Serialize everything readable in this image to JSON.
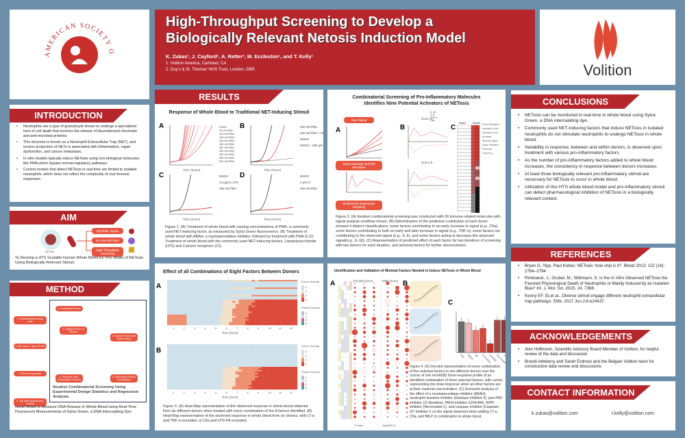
{
  "header": {
    "title_line1": "High-Throughput Screening to Develop a",
    "title_line2": "Biologically Relevant Netosis Induction Model",
    "authors": "K. Zukas¹, J. Cayford¹, A. Retter², M. Eccleston¹, and T. Kelly¹",
    "affiliation1": "1. Volition America, Carlsbad, CA",
    "affiliation2": "2. Guy's & St. Thomas' NHS Trust, London, GBR"
  },
  "logos": {
    "ash": "AMERICAN SOCIETY OF HEMATOLOGY",
    "volition": "Volition"
  },
  "colors": {
    "brand_red": "#b5262d",
    "background": "#6d8ea8",
    "accent_orange": "#e8553f"
  },
  "introduction": {
    "title": "INTRODUCTION",
    "bullets": [
      "Neutrophils are a type of granulocyte known to undergo a specialized form of cell death that involves the release of decondensed chromatin and anti-microbial proteins.",
      "This structure is known as a Neutrophil Extracellular Trap (NET), and excess production of NETs is associated with inflammation, organ dysfunction, and cancer metastasis.",
      "In vitro models typically induce NETosis using non-biological molecules like PMA which bypass normal regulatory pathways",
      "Current models that detect NETosis in real-time are limited to isolated neutrophils, which does not reflect the complexity of real immune responses."
    ]
  },
  "aim": {
    "title": "AIM",
    "net_label": "NETosis",
    "net_sublabel": "Neutrophil Extracellular Traps",
    "pills": [
      "Synthetic Inputs",
      "Ex-Vivo NETosis",
      "High Throughput Screening"
    ],
    "text": "To Develop a HTS Scalable Human Whole Blood Ex-Vivo Model of NETosis Using Biologically Relevant Stimuli."
  },
  "method": {
    "title": "METHOD",
    "steps_left": [
      "1. Dilute/dispense blood cells",
      "2. Mix blood + Sytox Green",
      "3. Pin and spin plate",
      "4. Top read fluorescence reading"
    ],
    "cycle_steps": [
      "1. Individual Factors",
      "2. Design Pools of Factors",
      "3. Screen Pools with Sytox Assay",
      "4. Determine Factor Contribution",
      "5. Remove Zero Contribution Factors"
    ],
    "axis_label": "Time Elapsed (hr)",
    "box_caption": "Iterative Combinatorial Screening Using Experimental Design Statistics and Regression Analysis.",
    "caption": "Novel Model to Measure DNA Release in Whole Blood using Real-Time Fluorescent Measurements of Sytox Green, a DNA Intercalating Dye."
  },
  "results": {
    "title": "RESULTS",
    "fig1_title": "Response of Whole Blood to Traditional NET-Inducing Stimuli",
    "panels": [
      "A",
      "B",
      "C",
      "D"
    ],
    "x_label": "Time (hours)",
    "y_label": "RFU (1e6)",
    "legend_a": [
      "DMSO",
      "50 nM PMA",
      "100 nM PMA",
      "150 nM PMA",
      "200 nM PMA",
      "250 nM PMA",
      "300 nM PMA",
      "350 nM PMA",
      "400 nM PMA",
      "450 nM PMA",
      "500 nM PMA"
    ],
    "legend_b": [
      "250 nM PMA",
      "250 nM PMA + 500 µM ABAH",
      "DMSO",
      "DMSO + 500 µM ABAH"
    ],
    "legend_c": [
      "DMSO",
      "12 µg/mL LPS",
      "250 nM PMA"
    ],
    "legend_d": [
      "DMSO",
      "4 µM CI",
      "250 nM PMA"
    ],
    "caption": "Figure 1. (A) Treatment of whole blood with varying concentrations of PMA, a commonly used NET-inducing factor, as measured by Sytox Green fluorescence. (B) Treatment of whole blood with ABAH, a myeloperoxidase inhibitor, followed by treatment with PMA (C,D) Treatment of whole blood with the commonly used NET-inducing factors, Lipopolysaccharide (LPS) and Calcium Ionophore (CI)."
  },
  "fig2": {
    "title_line1": "Combinatorial Screening of Pro-Inflammatory Molecules",
    "title_line2": "Identifies Nine Potential Activators of NETosis",
    "pills": [
      "Raw Signal",
      "Signal average and first derivative",
      "Multivariate Regression Modeling"
    ],
    "donor_a": "Donor A",
    "donor_b": "Donor B",
    "legend": [
      "IL-1β",
      "IL-5",
      "TNF-α",
      "C5a"
    ],
    "table_header": [
      "#",
      "Factor",
      "Screen"
    ],
    "legend_c": [
      "Donor Response",
      "Increase in both",
      "Increase in one",
      "No effect",
      "Reduced signal",
      "Factor Selection",
      "Removed",
      "Final Pool"
    ],
    "caption": "Figure 2. (A) Iterative combinatorial screening was conducted with 26 immune related molecules with signal analysis workflow shown. (B) Determination of the predicted contribution of each factor showed 4 distinct classifications; some factors contributing to an early increase in signal (e.g., C5a), some factors contributing to both an early and later increase in signal (e.g., TNF-α), some factors not contributing to the observed signal (e.g., IL-5), and some factors acting to decrease the observed signal(e.g., IL-1β). (C) Representation of predicted effect of each factor for two iterations of screening with two donors for each iteration, and selected factors for further deconvolution."
  },
  "fig3": {
    "title": "Effect of all Combinations of Eight Factors Between Donors",
    "x_label": "Time (hours)",
    "x_ticks": [
      "1",
      "2",
      "3",
      "4",
      "5",
      "6",
      "7",
      "8",
      "9",
      "10",
      "11",
      "12"
    ],
    "legend_overlap": "Donor Overlap",
    "overlap_ticks": [
      "0",
      "2",
      "4",
      "6"
    ],
    "legend_pooled": "Pooled Factors",
    "pooled_ticks": [
      "2",
      "4",
      "6",
      "8"
    ],
    "caption": "Figure 3. (A) Heat-Map representation of the observed response in whole blood obtained from six different donors when treated with every combination of the 8-factors identified. (B) Heat-Map representation of the observed response in whole blood from six donors, with LT-α and TNF-α excluded, or C5a and LPS-PA excluded."
  },
  "fig4": {
    "title": "Identification and Validation of Minimal Factors Needed to Induce NETosis in Whole Blood",
    "donor1": "Female Donor",
    "donor2": "Male Donor",
    "pvalue": "P value",
    "log_label": "log2(ΔRFU)",
    "c_categories": [
      "Null",
      "ABAH",
      "NE",
      "Cl-Amidine",
      "GSK484",
      "Necrostatin-1",
      "Caspase-3/7"
    ],
    "c_values": [
      1.05,
      1.0,
      0.75,
      0.82,
      0.3,
      1.1,
      1.1
    ],
    "caption": "Figure 4. (A) Dot-plot representation of every combination of five selected factors in two different donors over the course of one month(B) Dose-response profile of an identified combination of three selected factors, with curves representing the dose-response when all other factors are at their maximal concentration. (C) End-point analysis of the effect of a myeloperoxidase inhibitor (ABAH), neutrophil elastase inhibitor (Elastase Inhibitor II), pan-PAD inhibitor (Cl-Amidine), PAD4 inhibitor (GSK484), RIPK inhibitor (Necrostatin-1), and caspase inhibitor (Caspase-3/7 inhibitor I) on the signal observed when adding LT-α, C5a, and fMLP in combination to whole blood."
  },
  "conclusions": {
    "title": "CONCLUSIONS",
    "bullets": [
      "NETosis can be monitored in real-time in whole blood using Sytox Green, a DNA intercalating dye.",
      "Commonly used NET-inducing factors that induce NETosis in isolated neutrophils do not stimulate neutrophils to undergo NETosis in whole blood.",
      "Variability in response, between and within donors, is observed upon treatment with various pro-inflammatory factors.",
      "As the number of pro-inflammatory factors added to whole blood increases, the consistency in response between donors increases.",
      "At least three biologically relevant pro-inflammatory stimuli are necessary for NETosis to occur in whole blood.",
      "Utilization of this HTS whole blood model and pro-inflammatory stimuli can detect pharmacological inhibition of NETosis in a biologically relevant context."
    ]
  },
  "references": {
    "title": "REFERENCES",
    "bullets": [
      "Bryan G. Yipp, Paul Kubes; NETosis: how vital is it?. Blood 2013; 122 (16): 2784–2794",
      "Rimboeck, J.; Gruber, M.; Wittmann, S. Is the In Vitro Observed NETosis the Favored Physiological Death of Neutrophils or Mainly Induced by an Isolation Bias? Int. J. Mol. Sci. 2023, 24, 7368.",
      "Kenny EF. Et,et al., Diverse stimuli engage different neutrophil extracellular trap pathways. Elife. 2017 Jun 2;6:e24437."
    ]
  },
  "acknowledgements": {
    "title": "ACKNOWLEDGEMENTS",
    "bullets": [
      "Alex Hoffmann, Scientific Advisory Board Member of Volition, for helpful review of the data and discussion",
      "Brandi Atteberry and Sarah Erdman and the Belgian Volition team for constructive data review and discussions"
    ]
  },
  "contact": {
    "title": "CONTACT INFORMATION",
    "email1": "k.zukas@volition.com",
    "email2": "t.kelly@volition.com"
  }
}
